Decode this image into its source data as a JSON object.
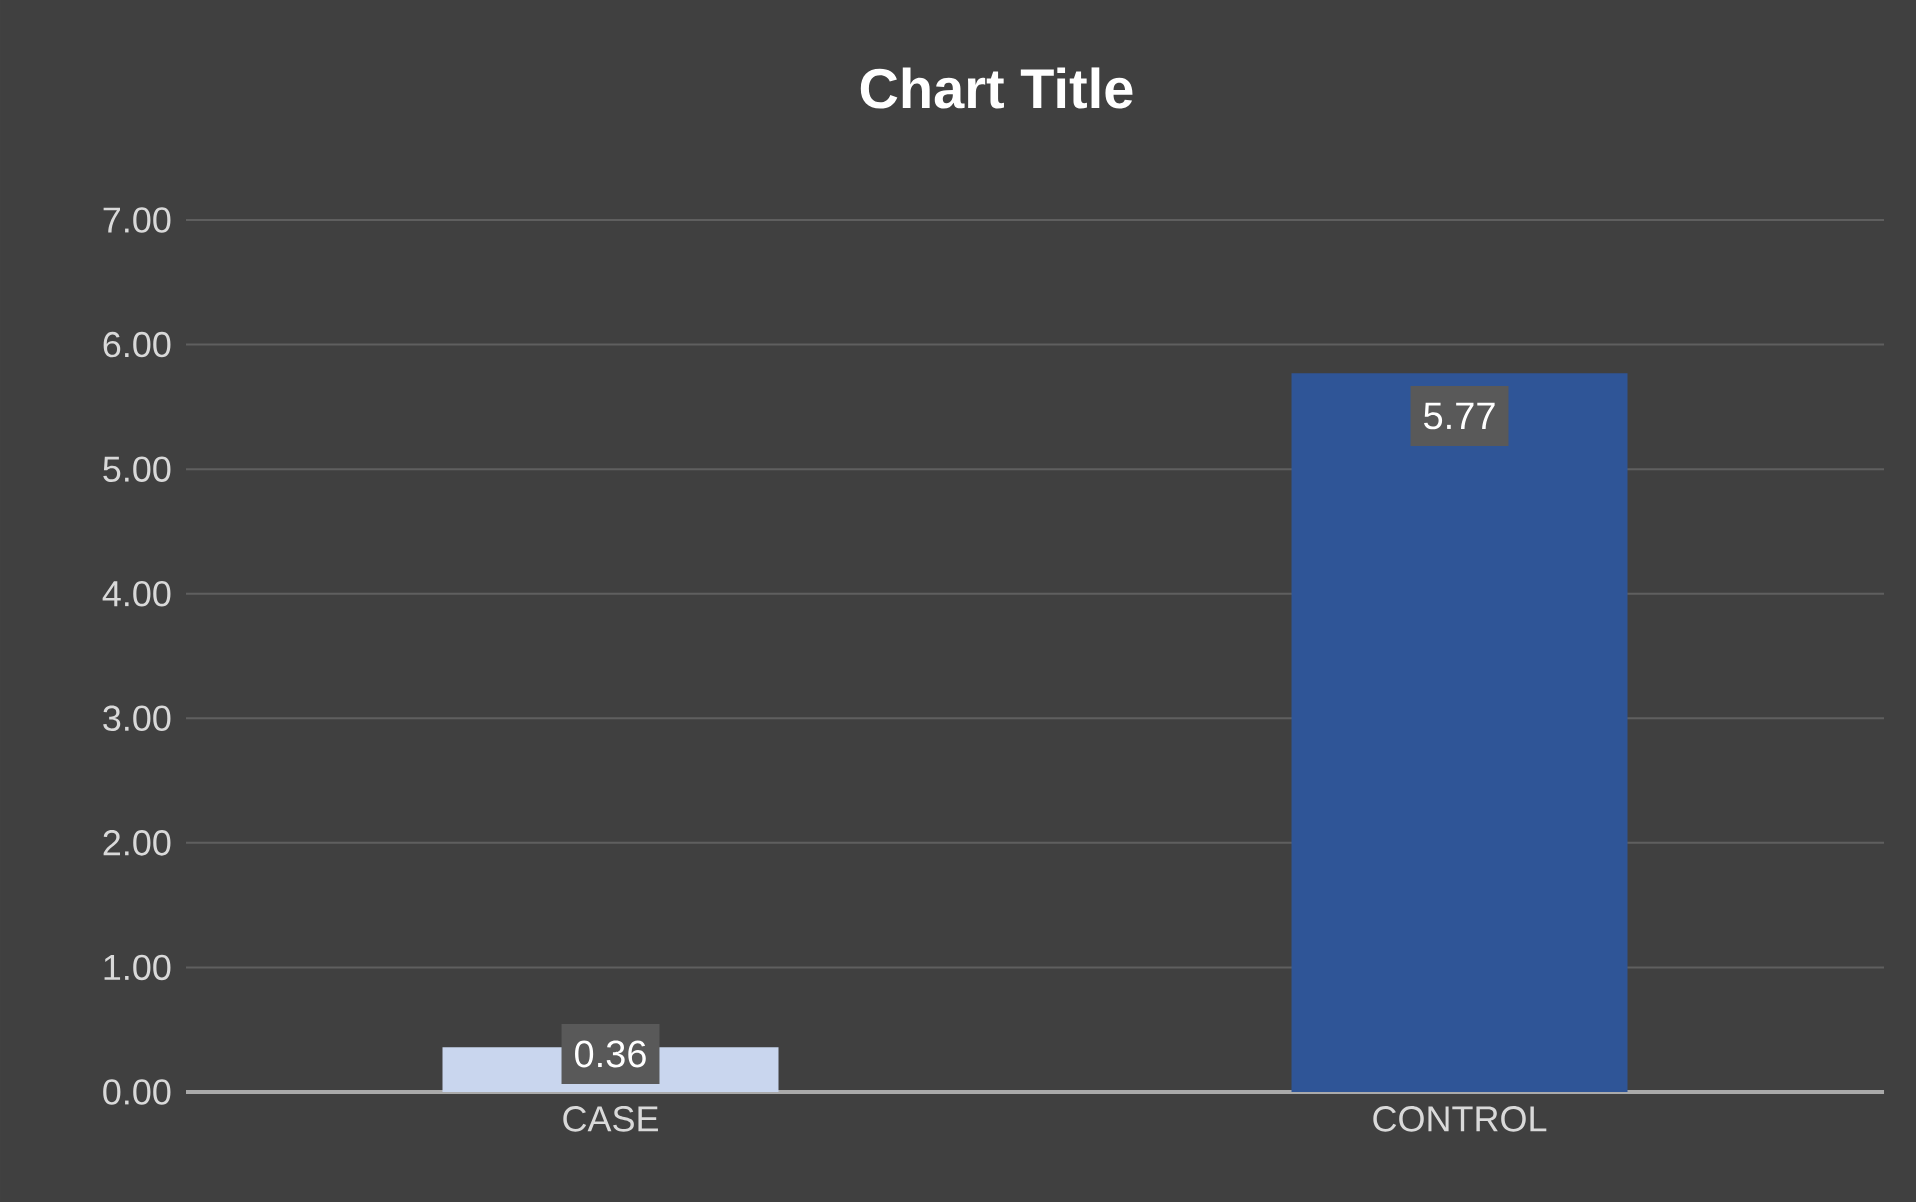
{
  "chart_data": {
    "type": "bar",
    "title": "Chart Title",
    "categories": [
      "CASE",
      "CONTROL"
    ],
    "values": [
      0.36,
      5.77
    ],
    "colors": [
      "#c9d6ee",
      "#2f5597"
    ],
    "ylim": [
      0,
      7
    ],
    "yticks": [
      {
        "value": 0,
        "label": "0.00"
      },
      {
        "value": 1,
        "label": "1.00"
      },
      {
        "value": 2,
        "label": "2.00"
      },
      {
        "value": 3,
        "label": "3.00"
      },
      {
        "value": 4,
        "label": "4.00"
      },
      {
        "value": 5,
        "label": "5.00"
      },
      {
        "value": 6,
        "label": "6.00"
      },
      {
        "value": 7,
        "label": "7.00"
      }
    ],
    "grid": "y",
    "data_labels": true
  }
}
